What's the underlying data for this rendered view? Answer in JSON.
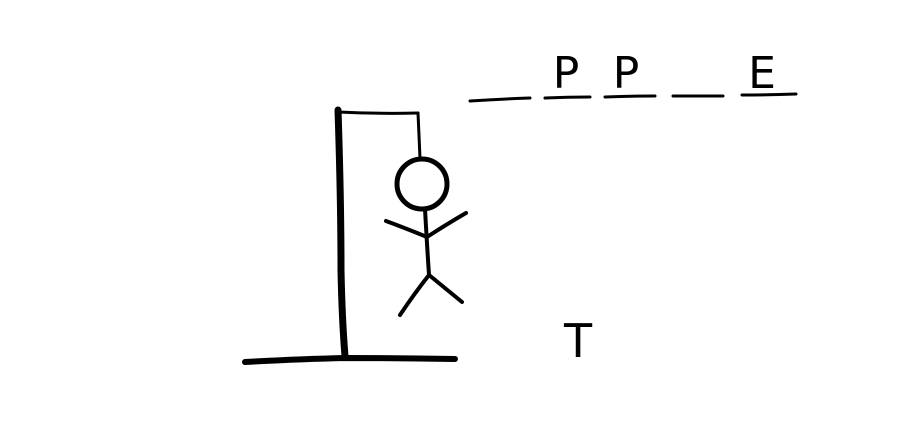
{
  "game": {
    "word_slots": [
      "",
      "P",
      "P",
      "",
      "E"
    ],
    "wrong_guesses": [
      "T"
    ],
    "drawn_parts": [
      "ground",
      "pole",
      "beam",
      "rope",
      "head",
      "body",
      "left-arm",
      "right-arm",
      "left-leg",
      "right-leg"
    ],
    "ink_color": "#000000",
    "background_color": "#ffffff"
  }
}
